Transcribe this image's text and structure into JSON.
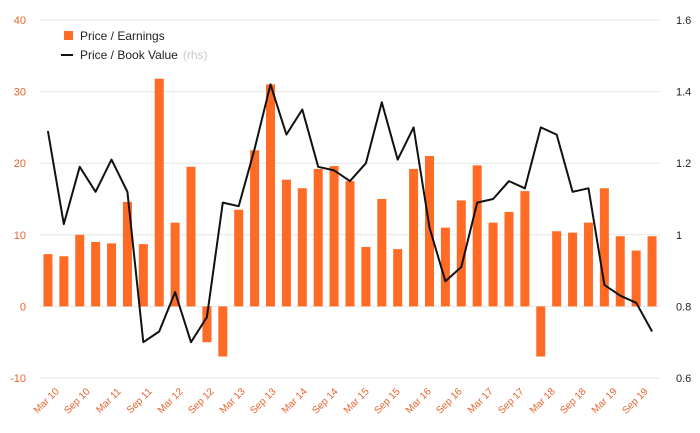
{
  "chart_data": {
    "type": "bar",
    "x_labels_shown": [
      "Mar 10",
      "Sep 10",
      "Mar 11",
      "Sep 11",
      "Mar 12",
      "Sep 12",
      "Mar 13",
      "Sep 13",
      "Mar 14",
      "Sep 14",
      "Mar 15",
      "Sep 15",
      "Mar 16",
      "Sep 16",
      "Mar 17",
      "Sep 17",
      "Mar 18",
      "Sep 18",
      "Mar 19",
      "Sep 19"
    ],
    "series": [
      {
        "name": "Price / Earnings",
        "kind": "bar",
        "axis": "left",
        "color": "#ff6a24",
        "values": [
          7.3,
          7.0,
          10.0,
          9.0,
          8.8,
          14.6,
          8.7,
          31.8,
          11.7,
          19.5,
          -5.0,
          -7.0,
          13.5,
          21.8,
          31.0,
          17.7,
          16.5,
          19.2,
          19.6,
          17.5,
          8.3,
          15.0,
          8.0,
          19.2,
          21.0,
          11.0,
          14.8,
          19.7,
          11.7,
          13.2,
          16.1,
          -7.0,
          10.5,
          10.3,
          11.7,
          16.5,
          9.8,
          7.8,
          9.8
        ]
      },
      {
        "name": "Price / Book Value",
        "legend_note": "(rhs)",
        "kind": "line",
        "axis": "right",
        "color": "#111111",
        "values": [
          1.29,
          1.03,
          1.19,
          1.12,
          1.21,
          1.12,
          0.7,
          0.73,
          0.84,
          0.7,
          0.77,
          1.09,
          1.08,
          1.24,
          1.42,
          1.28,
          1.35,
          1.19,
          1.18,
          1.15,
          1.2,
          1.37,
          1.21,
          1.3,
          1.02,
          0.87,
          0.91,
          1.09,
          1.1,
          1.15,
          1.13,
          1.3,
          1.28,
          1.12,
          1.13,
          0.86,
          0.83,
          0.81,
          0.73
        ]
      }
    ],
    "y_left": {
      "min": -10,
      "max": 40,
      "ticks": [
        "-10",
        "0",
        "10",
        "20",
        "30",
        "40"
      ],
      "color": "#e8622a"
    },
    "y_right": {
      "min": 0.6,
      "max": 1.6,
      "ticks": [
        "0.6",
        "0.8",
        "1",
        "1.2",
        "1.4",
        "1.6"
      ]
    },
    "grid": "horizontal",
    "legend_position": "top-left",
    "title": "",
    "xlabel": "",
    "ylabel": ""
  }
}
